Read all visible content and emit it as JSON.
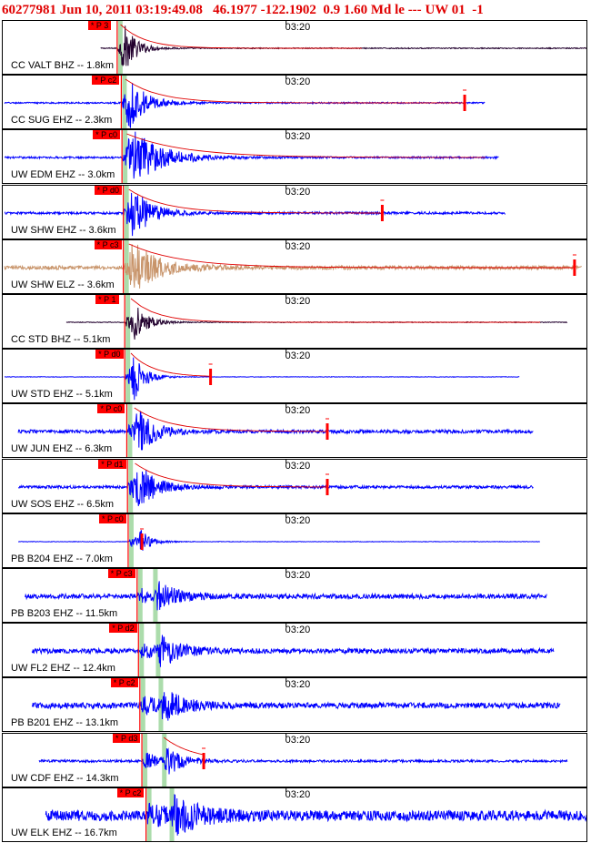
{
  "header": {
    "event_id": "60277981",
    "datetime": "Jun 10, 2011 03:19:49.08",
    "lat": "46.1977",
    "lon": "-122.1902",
    "depth": "0.9",
    "magnitude": "1.60",
    "mag_type": "Md",
    "event_type": "le",
    "separator": "---",
    "network": "UW",
    "version": "01",
    "suffix": "-1"
  },
  "chart_data": {
    "type": "line",
    "title": "60277981 Jun 10, 2011 03:19:49.08   46.1977 -122.1902  0.9 1.60 Md le --- UW 01  -1",
    "time_tick_label": "03:20",
    "x_unit": "seconds relative to origin",
    "xlim": [
      -16,
      69
    ],
    "tick_at": 25,
    "colors": {
      "velocity": "#0000ff",
      "broadband": "#22002e",
      "horizontal": "#c8946a",
      "pick": "#ff0000",
      "coda": "#e00000",
      "window": "#8fd08f"
    },
    "traces": [
      {
        "net": "CC",
        "sta": "VALT",
        "chan": "BHZ",
        "dist": "1.8km",
        "label": "CC VALT BHZ -- 1.8km",
        "pick": "P 3",
        "p_time": 0.4,
        "s_time": 0.9,
        "trace_start": -2,
        "trace_end": 69,
        "amp": 1.0,
        "decay": 1.6,
        "noise": 0.02,
        "color": "broadband",
        "coda_end": 36,
        "coda_marker": false
      },
      {
        "net": "CC",
        "sta": "SUG",
        "chan": "EHZ",
        "dist": "2.3km",
        "label": "CC SUG EHZ -- 2.3km",
        "pick": "P c2",
        "p_time": 1.0,
        "s_time": 1.6,
        "trace_start": -16,
        "trace_end": 54,
        "amp": 1.0,
        "decay": 2.2,
        "noise": 0.03,
        "color": "velocity",
        "coda_end": 51,
        "coda_marker": true
      },
      {
        "net": "UW",
        "sta": "EDM",
        "chan": "EHZ",
        "dist": "3.0km",
        "label": "UW EDM EHZ -- 3.0km",
        "pick": "P c0",
        "p_time": 1.1,
        "s_time": 1.8,
        "trace_start": -16,
        "trace_end": 56,
        "amp": 1.0,
        "decay": 3.8,
        "noise": 0.04,
        "color": "velocity",
        "coda_end": 54,
        "coda_marker": false
      },
      {
        "net": "UW",
        "sta": "SHW",
        "chan": "EHZ",
        "dist": "3.6km",
        "label": "UW SHW EHZ -- 3.6km",
        "pick": "P d0",
        "p_time": 1.3,
        "s_time": 2.1,
        "trace_start": -16,
        "trace_end": 57,
        "amp": 1.0,
        "decay": 2.4,
        "noise": 0.05,
        "color": "velocity",
        "coda_end": 39,
        "coda_marker": true
      },
      {
        "net": "UW",
        "sta": "SHW",
        "chan": "ELZ",
        "dist": "3.6km",
        "label": "UW SHW ELZ -- 3.6km",
        "pick": "P c3",
        "p_time": 1.3,
        "s_time": 2.1,
        "trace_start": -16,
        "trace_end": 68,
        "amp": 0.9,
        "decay": 3.4,
        "noise": 0.08,
        "color": "horizontal",
        "coda_end": 67,
        "coda_marker": true
      },
      {
        "net": "CC",
        "sta": "STD",
        "chan": "BHZ",
        "dist": "5.1km",
        "label": "CC STD BHZ -- 5.1km",
        "pick": "P 1",
        "p_time": 1.5,
        "s_time": 2.4,
        "trace_start": -7,
        "trace_end": 66,
        "amp": 0.8,
        "decay": 1.7,
        "noise": 0.015,
        "color": "broadband",
        "coda_end": 62,
        "coda_marker": false
      },
      {
        "net": "UW",
        "sta": "STD",
        "chan": "EHZ",
        "dist": "5.1km",
        "label": "UW STD EHZ -- 5.1km",
        "pick": "P d0",
        "p_time": 1.5,
        "s_time": 2.4,
        "trace_start": -16,
        "trace_end": 59,
        "amp": 1.0,
        "decay": 1.5,
        "noise": 0.01,
        "color": "velocity",
        "coda_end": 14,
        "coda_marker": true
      },
      {
        "net": "UW",
        "sta": "JUN",
        "chan": "EHZ",
        "dist": "6.3km",
        "label": "UW JUN EHZ -- 6.3km",
        "pick": "P c0",
        "p_time": 1.8,
        "s_time": 2.9,
        "trace_start": -14,
        "trace_end": 61,
        "amp": 0.9,
        "decay": 2.3,
        "noise": 0.07,
        "color": "velocity",
        "coda_end": 31,
        "coda_marker": true
      },
      {
        "net": "UW",
        "sta": "SOS",
        "chan": "EHZ",
        "dist": "6.5km",
        "label": "UW SOS EHZ -- 6.5km",
        "pick": "P d1",
        "p_time": 1.9,
        "s_time": 3.0,
        "trace_start": -14,
        "trace_end": 61,
        "amp": 1.0,
        "decay": 2.2,
        "noise": 0.06,
        "color": "velocity",
        "coda_end": 31,
        "coda_marker": true
      },
      {
        "net": "PB",
        "sta": "B204",
        "chan": "EHZ",
        "dist": "7.0km",
        "label": "PB B204 EHZ -- 7.0km",
        "pick": "P c0",
        "p_time": 2.0,
        "s_time": 3.4,
        "trace_start": -14,
        "trace_end": 62,
        "amp": 0.6,
        "decay": 1.4,
        "noise": 0.01,
        "color": "velocity",
        "coda_end": 4,
        "coda_marker": true
      },
      {
        "net": "PB",
        "sta": "B203",
        "chan": "EHZ",
        "dist": "11.5km",
        "label": "PB B203 EHZ -- 11.5km",
        "pick": "P c3",
        "p_time": 3.3,
        "s_time": 5.9,
        "trace_start": -13,
        "trace_end": 63,
        "amp": 0.6,
        "decay": 2.6,
        "noise": 0.1,
        "color": "velocity",
        "coda_end": 0,
        "coda_marker": false
      },
      {
        "net": "UW",
        "sta": "FL2",
        "chan": "EHZ",
        "dist": "12.4km",
        "label": "UW FL2 EHZ -- 12.4km",
        "pick": "P d2",
        "p_time": 3.5,
        "s_time": 6.3,
        "trace_start": -12,
        "trace_end": 64,
        "amp": 0.65,
        "decay": 2.8,
        "noise": 0.1,
        "color": "velocity",
        "coda_end": 0,
        "coda_marker": false
      },
      {
        "net": "PB",
        "sta": "B201",
        "chan": "EHZ",
        "dist": "13.1km",
        "label": "PB B201 EHZ -- 13.1km",
        "pick": "P c2",
        "p_time": 3.7,
        "s_time": 6.7,
        "trace_start": -12,
        "trace_end": 65,
        "amp": 0.7,
        "decay": 2.7,
        "noise": 0.12,
        "color": "velocity",
        "coda_end": 0,
        "coda_marker": false
      },
      {
        "net": "UW",
        "sta": "CDF",
        "chan": "EHZ",
        "dist": "14.3km",
        "label": "UW CDF EHZ -- 14.3km",
        "pick": "P d3",
        "p_time": 4.0,
        "s_time": 7.2,
        "trace_start": -11,
        "trace_end": 66,
        "amp": 0.8,
        "decay": 2.0,
        "noise": 0.05,
        "color": "velocity",
        "coda_end": 13,
        "coda_marker": true
      },
      {
        "net": "UW",
        "sta": "ELK",
        "chan": "EHZ",
        "dist": "16.7km",
        "label": "UW ELK EHZ -- 16.7km",
        "pick": "P c2",
        "p_time": 4.6,
        "s_time": 8.3,
        "trace_start": -10,
        "trace_end": 69,
        "amp": 0.8,
        "decay": 3.2,
        "noise": 0.22,
        "color": "velocity",
        "coda_end": 0,
        "coda_marker": false
      }
    ]
  }
}
